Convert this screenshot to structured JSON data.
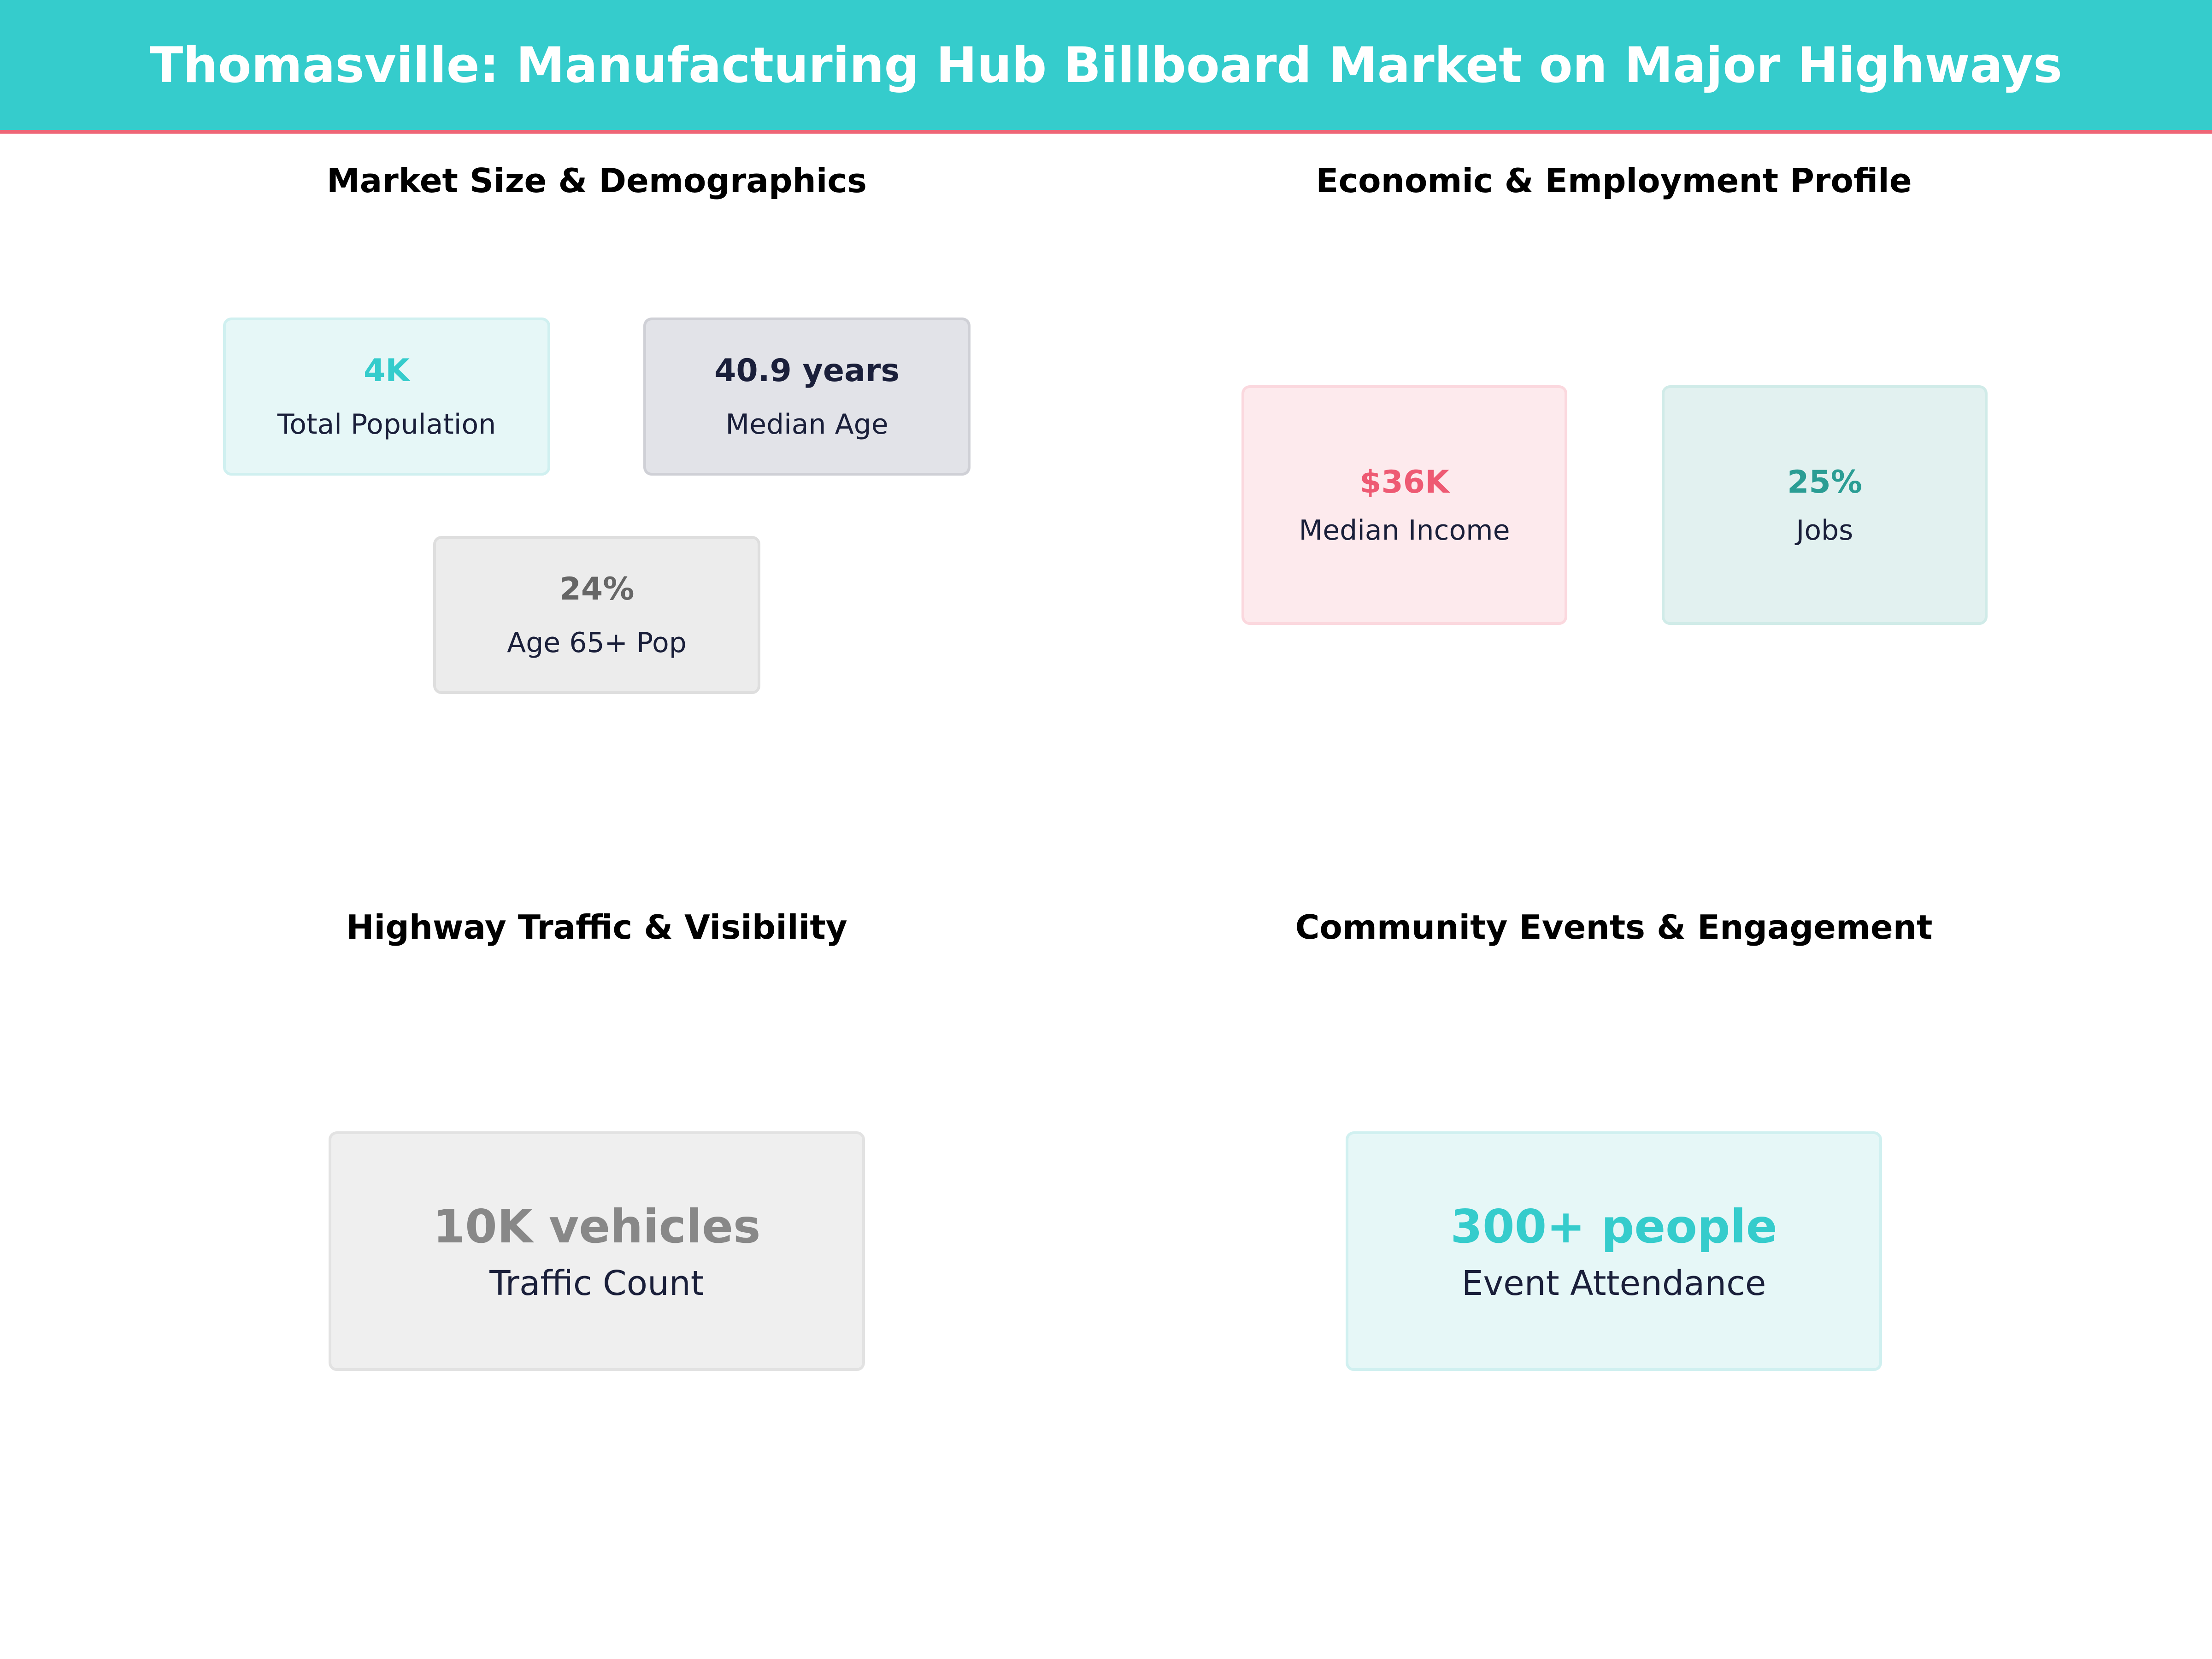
{
  "title": "Thomasville: Manufacturing Hub Billboard Market on Major Highways",
  "colors": {
    "header": "#35cccc",
    "accent_line": "#ee6677"
  },
  "sections": [
    {
      "title": "Market Size & Demographics",
      "cards": [
        {
          "value": "4K",
          "label": "Total Population",
          "color": "#35cccc"
        },
        {
          "value": "40.9 years",
          "label": "Median Age",
          "color": "#1a1f3a"
        },
        {
          "value": "24%",
          "label": "Age 65+ Pop",
          "color": "#666666"
        }
      ]
    },
    {
      "title": "Economic & Employment Profile",
      "cards": [
        {
          "value": "$36K",
          "label": "Median Income",
          "color": "#ee5a73"
        },
        {
          "value": "25%",
          "label": "Jobs",
          "color": "#2a9d94"
        }
      ]
    },
    {
      "title": "Highway Traffic & Visibility",
      "cards": [
        {
          "value": "10K vehicles",
          "label": "Traffic Count",
          "color": "#888888"
        }
      ]
    },
    {
      "title": "Community Events & Engagement",
      "cards": [
        {
          "value": "300+ people",
          "label": "Event Attendance",
          "color": "#35cccc"
        }
      ]
    }
  ]
}
